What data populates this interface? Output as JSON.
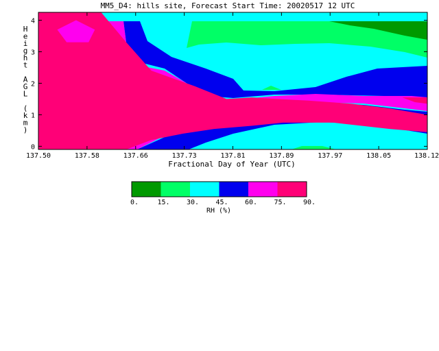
{
  "chart_data": {
    "type": "heatmap",
    "title": "MM5_D4: hills site,  Forecast Start Time: 20020517 12 UTC",
    "xlabel": "Fractional Day of Year (UTC)",
    "ylabel": "Height AGL (km)",
    "xlim": [
      137.5,
      138.12
    ],
    "ylim": [
      -0.1,
      4.25
    ],
    "x_ticks": [
      "137.50",
      "137.58",
      "137.66",
      "137.73",
      "137.81",
      "137.89",
      "137.97",
      "138.05",
      "138.12"
    ],
    "y_ticks": [
      "0",
      "1",
      "2",
      "3",
      "4"
    ],
    "colorbar": {
      "label": "RH (%)",
      "ticks": [
        "0.",
        "15.",
        "30.",
        "45.",
        "60.",
        "75.",
        "90."
      ],
      "bins": [
        {
          "from": 0,
          "to": 15,
          "color": "#009900"
        },
        {
          "from": 15,
          "to": 30,
          "color": "#00ff66"
        },
        {
          "from": 30,
          "to": 45,
          "color": "#00ffff"
        },
        {
          "from": 45,
          "to": 60,
          "color": "#0000ee"
        },
        {
          "from": 60,
          "to": 75,
          "color": "#ff00ee"
        },
        {
          "from": 75,
          "to": 90,
          "color": "#ff0077"
        }
      ]
    },
    "regions": [
      {
        "level": "75-90",
        "color": "#ff0077",
        "points": [
          [
            137.5,
            4.25
          ],
          [
            137.6,
            4.25
          ],
          [
            137.64,
            3.3
          ],
          [
            137.68,
            2.4
          ],
          [
            137.75,
            1.9
          ],
          [
            137.8,
            1.5
          ],
          [
            137.84,
            1.55
          ],
          [
            137.88,
            1.5
          ],
          [
            137.93,
            1.45
          ],
          [
            138.0,
            1.35
          ],
          [
            138.06,
            1.2
          ],
          [
            138.12,
            1.0
          ],
          [
            138.12,
            0.45
          ],
          [
            138.06,
            0.55
          ],
          [
            137.97,
            0.75
          ],
          [
            137.89,
            0.75
          ],
          [
            137.84,
            0.65
          ],
          [
            137.78,
            0.55
          ],
          [
            137.73,
            0.4
          ],
          [
            137.68,
            0.2
          ],
          [
            137.64,
            -0.1
          ],
          [
            137.5,
            -0.1
          ]
        ]
      },
      {
        "level": "75-90 (small)",
        "color": "#ff0077",
        "points": [
          [
            138.08,
            1.55
          ],
          [
            138.12,
            1.55
          ],
          [
            138.12,
            1.35
          ],
          [
            138.1,
            1.4
          ]
        ]
      },
      {
        "level": "60-75",
        "color": "#ff00ee",
        "points": [
          [
            137.53,
            3.7
          ],
          [
            137.56,
            4.0
          ],
          [
            137.59,
            3.7
          ],
          [
            137.58,
            3.3
          ],
          [
            137.545,
            3.3
          ]
        ]
      }
    ]
  }
}
